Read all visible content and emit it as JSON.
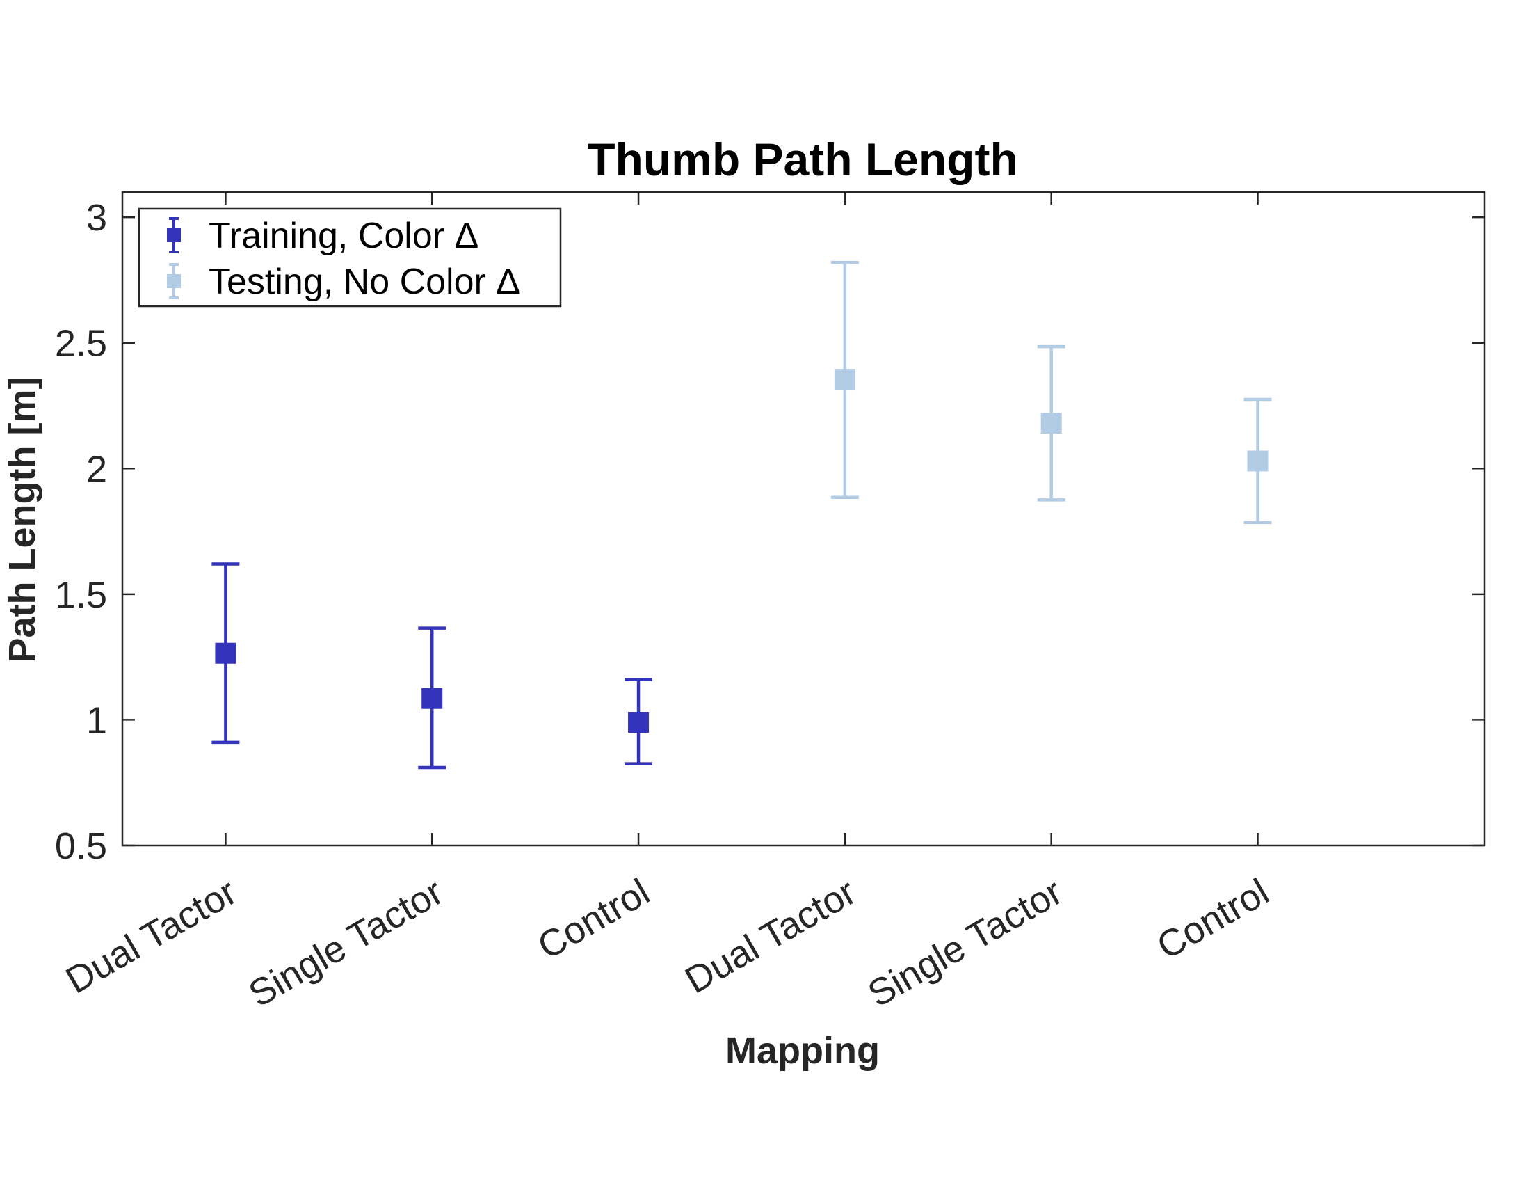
{
  "chart_data": {
    "type": "scatter",
    "title": "Thumb Path Length",
    "xlabel": "Mapping",
    "ylabel": "Path Length [m]",
    "ylim": [
      0.5,
      3.1
    ],
    "yticks": [
      "0.5",
      "1",
      "1.5",
      "2",
      "2.5",
      "3"
    ],
    "categories": [
      "Dual Tactor",
      "Single Tactor",
      "Control",
      "Dual Tactor",
      "Single Tactor",
      "Control"
    ],
    "legend_position": "top-left",
    "grid": false,
    "series": [
      {
        "name": "Training, Color Δ",
        "color": "#3333bb",
        "x": [
          1,
          2,
          3
        ],
        "values": [
          1.265,
          1.085,
          0.99
        ],
        "lower": [
          0.91,
          0.81,
          0.825
        ],
        "upper": [
          1.62,
          1.365,
          1.16
        ]
      },
      {
        "name": "Testing, No Color Δ",
        "color": "#b3cce6",
        "x": [
          4,
          5,
          6
        ],
        "values": [
          2.355,
          2.18,
          2.03
        ],
        "lower": [
          1.885,
          1.875,
          1.785
        ],
        "upper": [
          2.82,
          2.485,
          2.275
        ]
      }
    ]
  }
}
